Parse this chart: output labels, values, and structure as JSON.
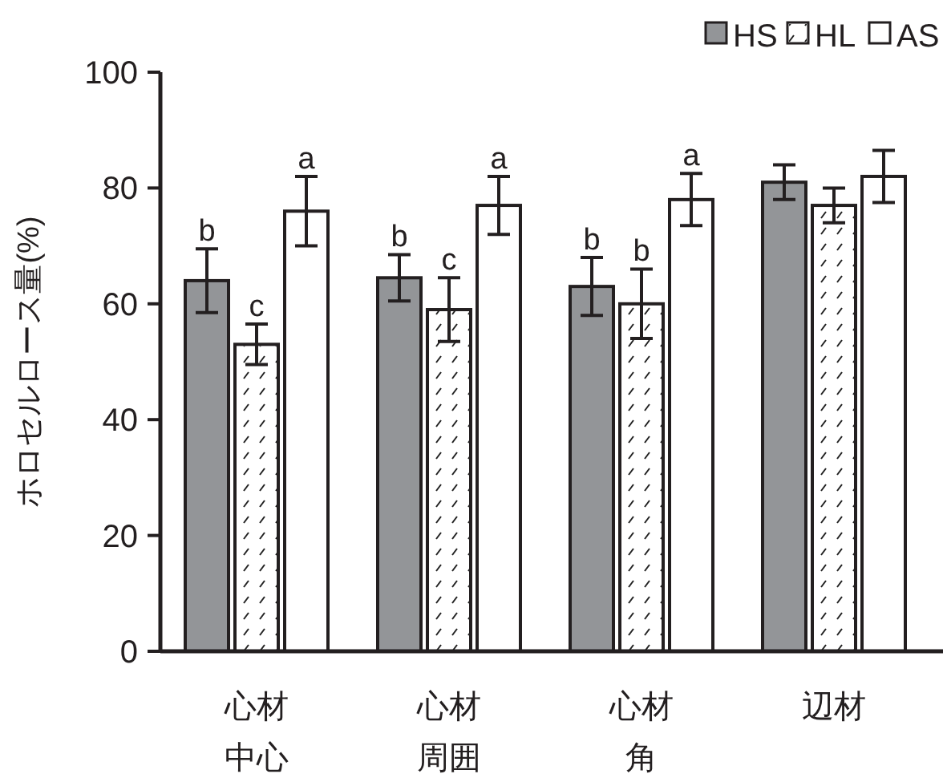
{
  "chart_data": {
    "type": "bar",
    "ylabel": "ホロセルロース量(%)",
    "categories": [
      "心材中心",
      "心材周囲",
      "心材角",
      "辺材"
    ],
    "series": [
      {
        "name": "HS",
        "color": "#939598",
        "values": [
          64,
          64.5,
          63,
          81
        ],
        "errors": [
          5.5,
          4,
          5,
          3
        ],
        "value_labels": [
          "b",
          "b",
          "b",
          null
        ]
      },
      {
        "name": "HL",
        "color": "#ffffff",
        "values": [
          53,
          59,
          60,
          77
        ],
        "errors": [
          3.5,
          5.5,
          6,
          3
        ],
        "value_labels": [
          "c",
          "c",
          "b",
          null
        ]
      },
      {
        "name": "AS",
        "color": "#ffffff",
        "values": [
          76,
          77,
          78,
          82
        ],
        "errors": [
          6,
          5,
          4.5,
          4.5
        ],
        "value_labels": [
          "a",
          "a",
          "a",
          null
        ]
      }
    ],
    "ylim": [
      0,
      100
    ],
    "yticks": [
      0,
      20,
      40,
      60,
      80,
      100
    ],
    "legend": "top right",
    "grid": false
  }
}
